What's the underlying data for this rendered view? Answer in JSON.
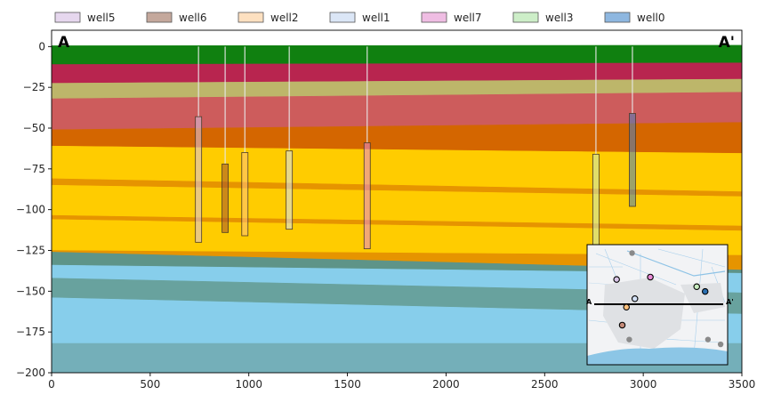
{
  "chart_data": {
    "type": "area",
    "title": "",
    "xlabel": "",
    "ylabel": "",
    "xlim": [
      0,
      3500
    ],
    "ylim": [
      -200,
      10
    ],
    "x_ticks": [
      0,
      500,
      1000,
      1500,
      2000,
      2500,
      3000,
      3500
    ],
    "y_ticks": [
      0,
      -25,
      -50,
      -75,
      -100,
      -125,
      -150,
      -175,
      -200
    ],
    "grid": false,
    "section_labels": {
      "start": "A",
      "end": "A'"
    },
    "layers": [
      {
        "color": "#108010",
        "top": [
          0.5,
          0.8
        ],
        "bottom": [
          -11,
          -10
        ]
      },
      {
        "color": "#b8254f",
        "top": [
          -11,
          -10
        ],
        "bottom": [
          -22.5,
          -20
        ]
      },
      {
        "color": "#bdb66a",
        "top": [
          -22.5,
          -20
        ],
        "bottom": [
          -32,
          -28
        ]
      },
      {
        "color": "#cd5c5c",
        "top": [
          -32,
          -28
        ],
        "bottom": [
          -51,
          -46.5
        ]
      },
      {
        "color": "#d46600",
        "top": [
          -51,
          -46.5
        ],
        "bottom": [
          -61,
          -65.5
        ]
      },
      {
        "color": "#ffcc00",
        "top": [
          -61,
          -65.5
        ],
        "bottom": [
          -81,
          -89
        ]
      },
      {
        "color": "#e69400",
        "top": [
          -81,
          -89
        ],
        "bottom": [
          -85,
          -92
        ]
      },
      {
        "color": "#ffcc00",
        "top": [
          -85,
          -92
        ],
        "bottom": [
          -103.5,
          -110
        ]
      },
      {
        "color": "#e69400",
        "top": [
          -103.5,
          -110
        ],
        "bottom": [
          -106,
          -113
        ]
      },
      {
        "color": "#ffcc00",
        "top": [
          -106,
          -113
        ],
        "bottom": [
          -125,
          -128
        ]
      },
      {
        "color": "#e69400",
        "top": [
          -125,
          -128
        ],
        "bottom": [
          -126,
          -137
        ]
      },
      {
        "color": "#5e9488",
        "top": [
          -126,
          -137
        ],
        "bottom": [
          -134,
          -139
        ]
      },
      {
        "color": "#87ceeb",
        "top": [
          -134,
          -139
        ],
        "bottom": [
          -142,
          -151
        ]
      },
      {
        "color": "#68a29e",
        "top": [
          -142,
          -151
        ],
        "bottom": [
          -154,
          -164
        ]
      },
      {
        "color": "#87ceeb",
        "top": [
          -154,
          -164
        ],
        "bottom": [
          -182,
          -182
        ]
      },
      {
        "color": "#74afb9",
        "top": [
          -182,
          -182
        ],
        "bottom": [
          -200,
          -200
        ]
      }
    ],
    "wells": [
      {
        "name": "well5",
        "color": "#d8c4e6",
        "x": 745,
        "ground": 0,
        "screen_top": -43,
        "screen_bottom": -120
      },
      {
        "name": "well6",
        "color": "#a0522d",
        "x": 880,
        "ground": 0,
        "screen_top": -72,
        "screen_bottom": -114
      },
      {
        "name": "well2",
        "color": "#ffc27d",
        "x": 980,
        "ground": 0,
        "screen_top": -65,
        "screen_bottom": -116
      },
      {
        "name": "well1",
        "color": "#d4e2f7",
        "x": 1205,
        "ground": 0,
        "screen_top": -64,
        "screen_bottom": -112
      },
      {
        "name": "well7",
        "color": "#e88bd6",
        "x": 1600,
        "ground": 0,
        "screen_top": -59,
        "screen_bottom": -124
      },
      {
        "name": "well3",
        "color": "#c8ecc0",
        "x": 2760,
        "ground": 0,
        "screen_top": -66,
        "screen_bottom": -125
      },
      {
        "name": "well0",
        "color": "#4a7fbf",
        "x": 2945,
        "ground": 0,
        "screen_top": -41,
        "screen_bottom": -98
      }
    ],
    "legend": {
      "placement": "top",
      "entries": [
        {
          "label": "well5",
          "color": "#e6d7ee"
        },
        {
          "label": "well6",
          "color": "#c4a89c"
        },
        {
          "label": "well2",
          "color": "#fde0c0"
        },
        {
          "label": "well1",
          "color": "#dbe6f6"
        },
        {
          "label": "well7",
          "color": "#efbde3"
        },
        {
          "label": "well3",
          "color": "#cdeec8"
        },
        {
          "label": "well0",
          "color": "#8eb7e0"
        }
      ]
    },
    "inset_map": {
      "placement": "bottom-right",
      "section_labels": {
        "start": "A",
        "end": "A'"
      },
      "wells": [
        {
          "name": "well5",
          "color": "#d8c4e6",
          "u": 0.21,
          "v": 0.29
        },
        {
          "name": "well6",
          "color": "#c48a78",
          "u": 0.25,
          "v": 0.67
        },
        {
          "name": "well2",
          "color": "#ffc27d",
          "u": 0.28,
          "v": 0.52
        },
        {
          "name": "well1",
          "color": "#d4e2f7",
          "u": 0.34,
          "v": 0.45
        },
        {
          "name": "well7",
          "color": "#e88bd6",
          "u": 0.45,
          "v": 0.27
        },
        {
          "name": "well3",
          "color": "#c8ecc0",
          "u": 0.78,
          "v": 0.35
        },
        {
          "name": "well0",
          "color": "#2a6fb0",
          "u": 0.84,
          "v": 0.39
        }
      ],
      "other_points": [
        {
          "u": 0.32,
          "v": 0.07
        },
        {
          "u": 0.3,
          "v": 0.79
        },
        {
          "u": 0.86,
          "v": 0.79
        },
        {
          "u": 0.95,
          "v": 0.83
        }
      ]
    }
  }
}
